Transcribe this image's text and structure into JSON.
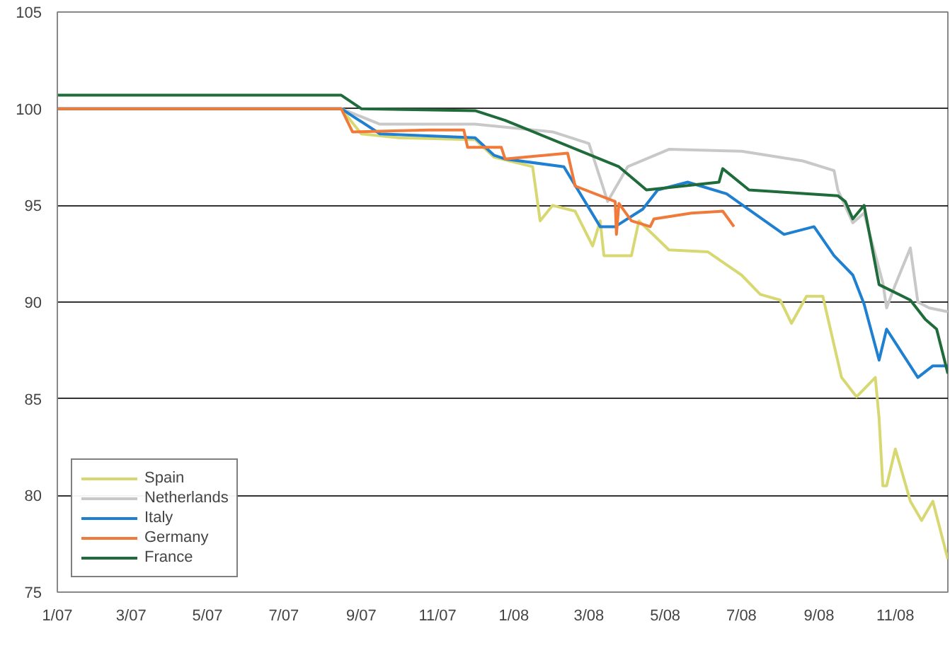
{
  "chart_data": {
    "type": "line",
    "xlim": [
      "2007-01-01",
      "2008-12-13"
    ],
    "ylim": [
      75,
      105
    ],
    "xticks": [
      {
        "value": "2007-01-01",
        "label": "1/07"
      },
      {
        "value": "2007-03-01",
        "label": "3/07"
      },
      {
        "value": "2007-05-01",
        "label": "5/07"
      },
      {
        "value": "2007-07-01",
        "label": "7/07"
      },
      {
        "value": "2007-09-01",
        "label": "9/07"
      },
      {
        "value": "2007-11-01",
        "label": "11/07"
      },
      {
        "value": "2008-01-01",
        "label": "1/08"
      },
      {
        "value": "2008-03-01",
        "label": "3/08"
      },
      {
        "value": "2008-05-01",
        "label": "5/08"
      },
      {
        "value": "2008-07-01",
        "label": "7/08"
      },
      {
        "value": "2008-09-01",
        "label": "9/08"
      },
      {
        "value": "2008-11-01",
        "label": "11/08"
      }
    ],
    "yticks": [
      75,
      80,
      85,
      90,
      95,
      100,
      105
    ],
    "grid": "y",
    "legend": "bottom left",
    "line_style": "solid",
    "marker": "none",
    "series": [
      {
        "name": "Spain",
        "color": "#d8d873",
        "x": [
          "2007-01-01",
          "2007-08-16",
          "2007-09-01",
          "2007-10-01",
          "2007-12-01",
          "2007-12-16",
          "2008-01-16",
          "2008-01-22",
          "2008-02-01",
          "2008-02-19",
          "2008-03-04",
          "2008-03-10",
          "2008-03-13",
          "2008-04-04",
          "2008-04-10",
          "2008-05-04",
          "2008-06-04",
          "2008-07-01",
          "2008-07-16",
          "2008-08-01",
          "2008-08-10",
          "2008-08-22",
          "2008-09-04",
          "2008-09-19",
          "2008-10-01",
          "2008-10-16",
          "2008-10-19",
          "2008-10-22",
          "2008-10-25",
          "2008-11-01",
          "2008-11-13",
          "2008-11-22",
          "2008-12-01",
          "2008-12-13"
        ],
        "values": [
          100,
          100,
          98.7,
          98.5,
          98.4,
          97.5,
          97.0,
          94.2,
          95.0,
          94.7,
          92.9,
          94.2,
          92.4,
          92.4,
          94.2,
          92.7,
          92.6,
          91.4,
          90.4,
          90.1,
          88.9,
          90.3,
          90.3,
          86.1,
          85.1,
          86.1,
          84.0,
          80.5,
          80.5,
          82.4,
          79.7,
          78.7,
          79.7,
          76.7
        ]
      },
      {
        "name": "Netherlands",
        "color": "#c8c8c8",
        "x": [
          "2007-01-01",
          "2007-08-16",
          "2007-09-16",
          "2007-12-01",
          "2008-02-01",
          "2008-03-01",
          "2008-03-16",
          "2008-04-01",
          "2008-05-04",
          "2008-07-01",
          "2008-08-19",
          "2008-09-13",
          "2008-09-16",
          "2008-09-28",
          "2008-10-07",
          "2008-10-22",
          "2008-10-25",
          "2008-11-01",
          "2008-11-13",
          "2008-11-19",
          "2008-11-28",
          "2008-12-13"
        ],
        "values": [
          100,
          100,
          99.2,
          99.2,
          98.8,
          98.2,
          95.2,
          97.0,
          97.9,
          97.8,
          97.3,
          96.8,
          95.8,
          94.1,
          94.6,
          91.0,
          89.7,
          90.9,
          92.8,
          90.0,
          89.7,
          89.5
        ]
      },
      {
        "name": "Italy",
        "color": "#1f7fd0",
        "x": [
          "2007-01-01",
          "2007-08-16",
          "2007-09-16",
          "2007-12-01",
          "2007-12-16",
          "2007-12-25",
          "2008-02-10",
          "2008-03-10",
          "2008-03-22",
          "2008-04-13",
          "2008-04-25",
          "2008-05-19",
          "2008-06-19",
          "2008-08-04",
          "2008-08-28",
          "2008-09-13",
          "2008-09-28",
          "2008-10-07",
          "2008-10-19",
          "2008-10-25",
          "2008-11-19",
          "2008-12-01",
          "2008-12-13"
        ],
        "values": [
          100,
          100,
          98.7,
          98.5,
          97.6,
          97.4,
          97.0,
          93.9,
          93.9,
          94.8,
          95.8,
          96.2,
          95.6,
          93.5,
          93.9,
          92.4,
          91.4,
          89.9,
          87.0,
          88.6,
          86.1,
          86.7,
          86.7
        ]
      },
      {
        "name": "Germany",
        "color": "#f07a3a",
        "x": [
          "2007-01-01",
          "2007-08-16",
          "2007-08-25",
          "2007-10-25",
          "2007-11-22",
          "2007-11-25",
          "2007-12-22",
          "2007-12-25",
          "2008-02-13",
          "2008-02-19",
          "2008-03-22",
          "2008-03-23",
          "2008-03-25",
          "2008-04-04",
          "2008-04-19",
          "2008-04-22",
          "2008-05-22",
          "2008-06-16",
          "2008-06-25"
        ],
        "values": [
          100,
          100,
          98.8,
          98.9,
          98.9,
          98.0,
          98.0,
          97.4,
          97.7,
          96.0,
          95.2,
          93.5,
          95.1,
          94.2,
          93.9,
          94.3,
          94.6,
          94.7,
          93.9
        ]
      },
      {
        "name": "France",
        "color": "#1f6b3a",
        "x": [
          "2007-01-01",
          "2007-08-16",
          "2007-09-01",
          "2007-12-01",
          "2007-12-25",
          "2008-03-25",
          "2008-04-16",
          "2008-06-13",
          "2008-06-16",
          "2008-07-07",
          "2008-09-16",
          "2008-09-22",
          "2008-09-28",
          "2008-10-07",
          "2008-10-19",
          "2008-11-13",
          "2008-11-25",
          "2008-12-04",
          "2008-12-13"
        ],
        "values": [
          100.7,
          100.7,
          100.0,
          99.9,
          99.4,
          97.0,
          95.8,
          96.2,
          96.9,
          95.8,
          95.5,
          95.2,
          94.3,
          95.0,
          90.9,
          90.1,
          89.1,
          88.6,
          86.3
        ]
      }
    ]
  }
}
